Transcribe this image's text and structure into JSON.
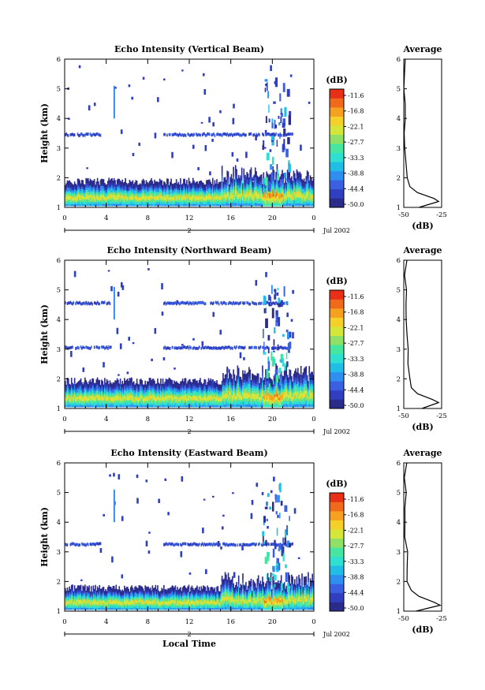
{
  "chart_data": [
    {
      "type": "heatmap",
      "title": "Echo Intensity (Vertical Beam)",
      "ylabel": "Height (km)",
      "xlabel": "",
      "xlim": [
        0,
        24
      ],
      "ylim": [
        1,
        6
      ],
      "x_ticks": [
        "0",
        "4",
        "8",
        "12",
        "16",
        "20",
        "0"
      ],
      "y_ticks": [
        "1",
        "2",
        "3",
        "4",
        "5",
        "6"
      ],
      "date_label": "Jul 2002",
      "date_day": "2",
      "colorbar_label": "(dB)",
      "colorbar_ticks": [
        "-11.6",
        "-16.8",
        "-22.1",
        "-27.7",
        "-33.3",
        "-38.8",
        "-44.4",
        "-50.0"
      ],
      "echo_layers_km": [
        {
          "x0": 0,
          "x1": 24,
          "y0": 1.05,
          "y1": 1.75
        },
        {
          "x0": 0,
          "x1": 3.5,
          "y0": 3.4,
          "y1": 3.5
        },
        {
          "x0": 9.5,
          "x1": 22,
          "y0": 3.4,
          "y1": 3.5
        }
      ],
      "average_profile": {
        "title": "Average",
        "xlabel": "(dB)",
        "xlim": [
          -50,
          -25
        ],
        "x_ticks": [
          "-50",
          "-25"
        ],
        "height_km": [
          1.0,
          1.2,
          1.3,
          1.5,
          1.7,
          2.0,
          2.5,
          3.0,
          3.5,
          4.0,
          4.5,
          5.0,
          5.5,
          6.0
        ],
        "values_db": [
          -40,
          -27,
          -30,
          -41,
          -46,
          -47,
          -48,
          -48.5,
          -49,
          -49,
          -48.5,
          -49,
          -49.5,
          -49
        ]
      }
    },
    {
      "type": "heatmap",
      "title": "Echo Intensity (Northward Beam)",
      "ylabel": "Height (km)",
      "xlabel": "",
      "xlim": [
        0,
        24
      ],
      "ylim": [
        1,
        6
      ],
      "x_ticks": [
        "0",
        "4",
        "8",
        "12",
        "16",
        "20",
        "0"
      ],
      "y_ticks": [
        "1",
        "2",
        "3",
        "4",
        "5",
        "6"
      ],
      "date_label": "Jul 2002",
      "date_day": "2",
      "colorbar_label": "(dB)",
      "colorbar_ticks": [
        "-11.6",
        "-16.8",
        "-22.1",
        "-27.7",
        "-33.3",
        "-38.8",
        "-44.4",
        "-50.0"
      ],
      "echo_layers_km": [
        {
          "x0": 0,
          "x1": 24,
          "y0": 1.05,
          "y1": 1.8
        },
        {
          "x0": 0,
          "x1": 4.5,
          "y0": 4.5,
          "y1": 4.6
        },
        {
          "x0": 9.5,
          "x1": 21.5,
          "y0": 4.5,
          "y1": 4.6
        },
        {
          "x0": 0,
          "x1": 4.5,
          "y0": 3.0,
          "y1": 3.1
        },
        {
          "x0": 9.5,
          "x1": 21.5,
          "y0": 3.0,
          "y1": 3.1
        }
      ],
      "average_profile": {
        "title": "Average",
        "xlabel": "(dB)",
        "xlim": [
          -50,
          -25
        ],
        "x_ticks": [
          "-50",
          "-25"
        ],
        "height_km": [
          1.0,
          1.2,
          1.3,
          1.5,
          1.7,
          2.0,
          2.5,
          3.0,
          3.5,
          4.0,
          4.5,
          5.0,
          5.5,
          6.0
        ],
        "values_db": [
          -38,
          -27,
          -31,
          -41,
          -45,
          -46,
          -47,
          -47.5,
          -48,
          -48.5,
          -48,
          -48.5,
          -49,
          -48.5
        ]
      }
    },
    {
      "type": "heatmap",
      "title": "Echo Intensity (Eastward Beam)",
      "ylabel": "Height (km)",
      "xlabel": "Local Time",
      "xlim": [
        0,
        24
      ],
      "ylim": [
        1,
        6
      ],
      "x_ticks": [
        "0",
        "4",
        "8",
        "12",
        "16",
        "20",
        "0"
      ],
      "y_ticks": [
        "1",
        "2",
        "3",
        "4",
        "5",
        "6"
      ],
      "date_label": "Jul 2002",
      "date_day": "2",
      "colorbar_label": "(dB)",
      "colorbar_ticks": [
        "-11.6",
        "-16.8",
        "-22.1",
        "-27.7",
        "-33.3",
        "-38.8",
        "-44.4",
        "-50.0"
      ],
      "echo_layers_km": [
        {
          "x0": 0,
          "x1": 24,
          "y0": 1.05,
          "y1": 1.65
        },
        {
          "x0": 0,
          "x1": 3.5,
          "y0": 3.2,
          "y1": 3.3
        },
        {
          "x0": 9.5,
          "x1": 22,
          "y0": 3.2,
          "y1": 3.3
        }
      ],
      "average_profile": {
        "title": "Average",
        "xlabel": "(dB)",
        "xlim": [
          -50,
          -25
        ],
        "x_ticks": [
          "-50",
          "-25"
        ],
        "height_km": [
          1.0,
          1.2,
          1.3,
          1.5,
          1.7,
          2.0,
          2.5,
          3.0,
          3.5,
          4.0,
          4.5,
          5.0,
          5.5,
          6.0
        ],
        "values_db": [
          -42,
          -26,
          -30,
          -40,
          -45,
          -47,
          -47.5,
          -48,
          -48.5,
          -49,
          -48.5,
          -49,
          -49.5,
          -49
        ]
      }
    }
  ],
  "colors": {
    "colorbar": [
      "#2b2b8c",
      "#2f3fbf",
      "#3a5fe0",
      "#2f8ff0",
      "#22bde6",
      "#2fe0d0",
      "#47e6a0",
      "#8fe066",
      "#d4e63a",
      "#f5d02a",
      "#f5a020",
      "#f06a1c",
      "#e83018"
    ]
  }
}
